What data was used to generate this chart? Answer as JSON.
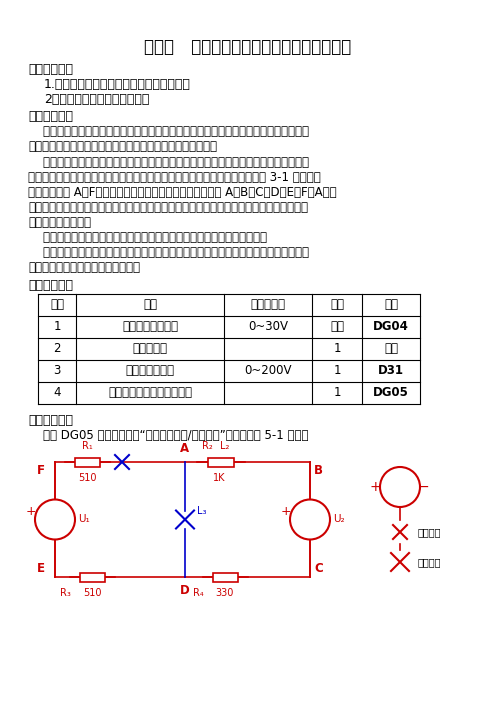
{
  "title": "实验二   电位、电压的测定电路电位图的绘制",
  "section1": "一、实验目的",
  "item1": "1.验证电路中电位的相对性、电压的绝对性",
  "item2": "2．掌握电路电位图的绘制方法",
  "section2": "二、原理说明",
  "para1_l1": "    在一个闭合电路中，各点电位的高低视所选的电位参考点的不同而变，但任意两点间的",
  "para1_l2": "电位差（即电压）则是绝对的，它不因参考点的变动而改变。",
  "para2_lines": [
    "    电位图是一种平面坐标一、四两象限内的折线图。其纵坐标为电位值，横坐标为各被测",
    "点。要制作某一电路的电位图，先以一定的顺序对电路中各被测点编号，以图 3-1 的电路为",
    "例，如图中的 A～F，并在坐标横轴上按顺序、均匀间隔标上 A、B、C、D、E、F、A。再",
    "根据测得的各点电位值，在各点所在的垂直线上描点。用直线依次连接相邻两个电位点，即",
    "得该电路的电位图。"
  ],
  "para3": "    在电位图中，任意两个被测点的纵坐标值之差即为该两点之间的电压值。",
  "para4_l1": "    在电路中电位参考点可任意选定。对于不同的参考点，所绘出的电位图形是不同的，但",
  "para4_l2": "其各点电位变化的规律却是一样的。",
  "section3": "三、实验设备",
  "table_headers": [
    "序号",
    "名称",
    "型号与规格",
    "数量",
    "备注"
  ],
  "table_rows": [
    [
      "1",
      "直流可调稳压电源",
      "0~30V",
      "二路",
      "DG04"
    ],
    [
      "2",
      "万　用　表",
      "",
      "1",
      "自备"
    ],
    [
      "3",
      "直流数字电压表",
      "0~200V",
      "1",
      "D31"
    ],
    [
      "4",
      "电位、电压测定实验电路板",
      "",
      "1",
      "DG05"
    ]
  ],
  "section4": "四、实验内容",
  "para5": "    利用 DG05 实验挂筱上的“基尔霍夫定律/叠加原理”线路，按图 5-1 接线。",
  "bg_color": "#ffffff"
}
